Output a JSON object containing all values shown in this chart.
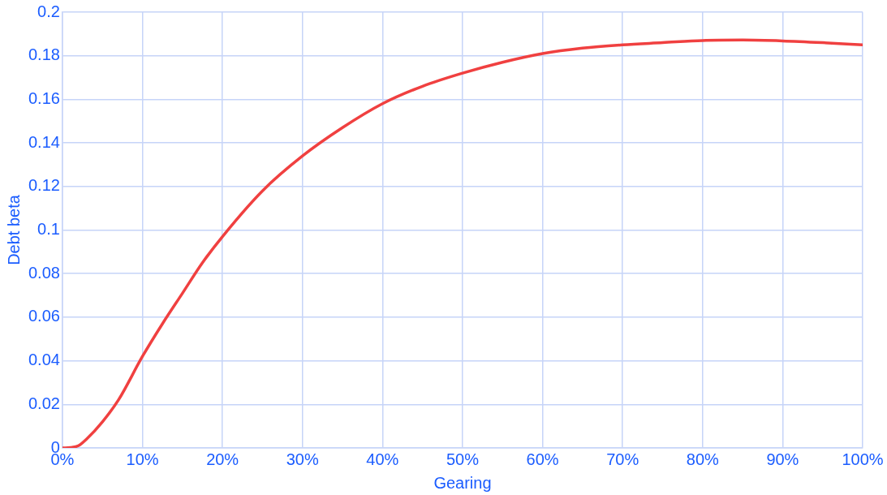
{
  "chart_data": {
    "type": "line",
    "xlabel": "Gearing",
    "ylabel": "Debt beta",
    "x": [
      0,
      0.01,
      0.02,
      0.03,
      0.05,
      0.07,
      0.1,
      0.125,
      0.15,
      0.175,
      0.2,
      0.25,
      0.3,
      0.35,
      0.4,
      0.45,
      0.5,
      0.55,
      0.6,
      0.65,
      0.7,
      0.75,
      0.8,
      0.85,
      0.9,
      0.95,
      1
    ],
    "series": [
      {
        "color": "#f04040",
        "values": [
          0,
          0.0002,
          0.001,
          0.004,
          0.012,
          0.022,
          0.042,
          0.057,
          0.071,
          0.085,
          0.097,
          0.118,
          0.134,
          0.147,
          0.158,
          0.166,
          0.172,
          0.177,
          0.181,
          0.1835,
          0.185,
          0.186,
          0.187,
          0.1872,
          0.1868,
          0.186,
          0.185
        ]
      }
    ],
    "xlim": [
      0,
      1
    ],
    "xticks": [
      {
        "value": 0,
        "label": "0%"
      },
      {
        "value": 0.1,
        "label": "10%"
      },
      {
        "value": 0.2,
        "label": "20%"
      },
      {
        "value": 0.3,
        "label": "30%"
      },
      {
        "value": 0.4,
        "label": "40%"
      },
      {
        "value": 0.5,
        "label": "50%"
      },
      {
        "value": 0.6,
        "label": "60%"
      },
      {
        "value": 0.7,
        "label": "70%"
      },
      {
        "value": 0.8,
        "label": "80%"
      },
      {
        "value": 0.9,
        "label": "90%"
      },
      {
        "value": 1,
        "label": "100%"
      }
    ],
    "ylim": [
      0,
      0.2
    ],
    "yticks": [
      0,
      0.02,
      0.04,
      0.06,
      0.08,
      0.1,
      0.12,
      0.14,
      0.16,
      0.18,
      0.2
    ],
    "grid": true,
    "legend": false,
    "marker": "none",
    "line_style": "solid"
  }
}
